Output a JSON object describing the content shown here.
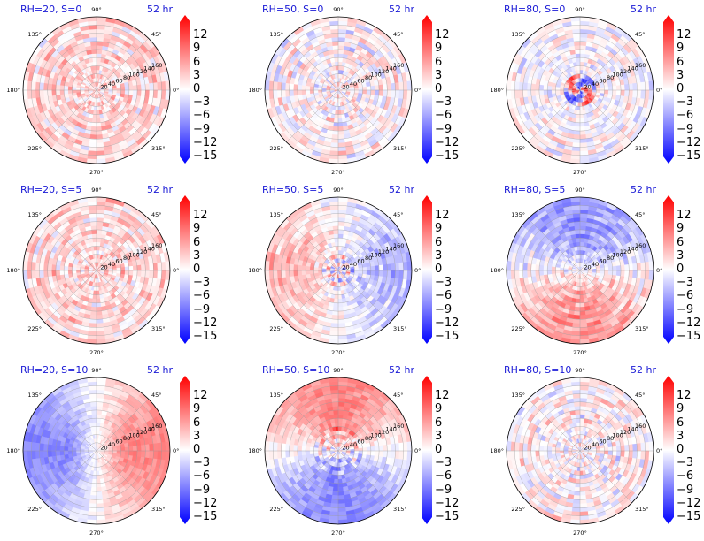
{
  "chart_data": [
    {
      "type": "heatmap",
      "title": "RH=20, S=0",
      "time_label": "52 hr",
      "pattern": "weak-mixed-positive"
    },
    {
      "type": "heatmap",
      "title": "RH=50, S=0",
      "time_label": "52 hr",
      "pattern": "weak-mixed"
    },
    {
      "type": "heatmap",
      "title": "RH=80, S=0",
      "time_label": "52 hr",
      "pattern": "strong-core"
    },
    {
      "type": "heatmap",
      "title": "RH=20, S=5",
      "time_label": "52 hr",
      "pattern": "weak-mixed-positive"
    },
    {
      "type": "heatmap",
      "title": "RH=50, S=5",
      "time_label": "52 hr",
      "pattern": "dipole-left-right"
    },
    {
      "type": "heatmap",
      "title": "RH=80, S=5",
      "time_label": "52 hr",
      "pattern": "dipole-top-bottom"
    },
    {
      "type": "heatmap",
      "title": "RH=20, S=10",
      "time_label": "52 hr",
      "pattern": "dipole-left-right-strong"
    },
    {
      "type": "heatmap",
      "title": "RH=50, S=10",
      "time_label": "52 hr",
      "pattern": "dipole-top-bottom-strong"
    },
    {
      "type": "heatmap",
      "title": "RH=80, S=10",
      "time_label": "52 hr",
      "pattern": "weak-mixed"
    }
  ],
  "polar_axis": {
    "angle_labels": [
      "90°",
      "45°",
      "0°",
      "315°",
      "270°",
      "225°",
      "180°",
      "135°"
    ],
    "angle_values": [
      90,
      45,
      0,
      315,
      270,
      225,
      180,
      135
    ],
    "radial_labels": [
      "20",
      "40",
      "60",
      "80",
      "100",
      "120",
      "140",
      "160"
    ],
    "radial_values": [
      20,
      40,
      60,
      80,
      100,
      120,
      140,
      160
    ],
    "rmax": 180
  },
  "colorbar": {
    "ticks": [
      "12",
      "9",
      "6",
      "3",
      "0",
      "−3",
      "−6",
      "−9",
      "−12",
      "−15"
    ],
    "tick_values": [
      12,
      9,
      6,
      3,
      0,
      -3,
      -6,
      -9,
      -12,
      -15
    ],
    "vmin": -15,
    "vmax": 15,
    "colors": {
      "min": "#0000ff",
      "mid": "#ffffff",
      "max": "#ff0000"
    }
  },
  "colors": {
    "title": "#1a1ad6",
    "grid": "#9a9a9a"
  }
}
